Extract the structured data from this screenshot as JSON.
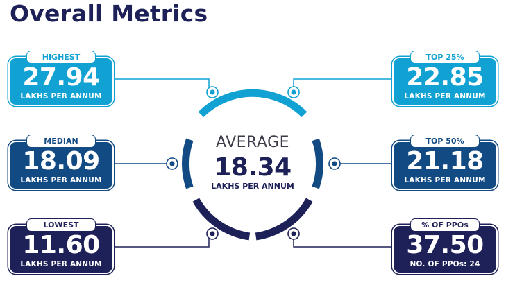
{
  "title": "Overall Metrics",
  "average": {
    "label": "AVERAGE",
    "value": "18.34",
    "unit": "LAKHS PER ANNUM"
  },
  "cards": {
    "highest": {
      "label": "HIGHEST",
      "value": "27.94",
      "unit": "LAKHS PER ANNUM"
    },
    "median": {
      "label": "MEDIAN",
      "value": "18.09",
      "unit": "LAKHS PER ANNUM"
    },
    "lowest": {
      "label": "LOWEST",
      "value": "11.60",
      "unit": "LAKHS PER ANNUM"
    },
    "top25": {
      "label": "TOP 25%",
      "value": "22.85",
      "unit": "LAKHS PER ANNUM"
    },
    "top50": {
      "label": "TOP 50%",
      "value": "21.18",
      "unit": "LAKHS PER ANNUM"
    },
    "ppos": {
      "label": "% OF PPOs",
      "value": "37.50",
      "unit": "NO. OF PPOs: 24"
    }
  },
  "colors": {
    "light": "#11a2d3",
    "mid": "#124a84",
    "dark": "#1e2058"
  }
}
